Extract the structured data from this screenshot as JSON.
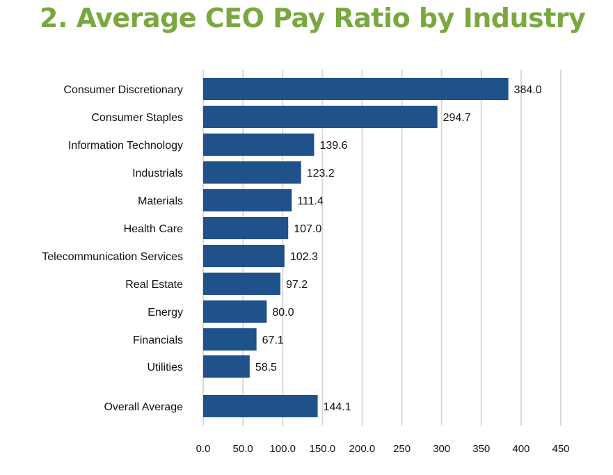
{
  "title": "2. Average CEO Pay Ratio by Industry",
  "colors": {
    "title": "#7aa840",
    "bar": "#1f528b",
    "grid": "#d9d9d9"
  },
  "chart_data": {
    "type": "bar",
    "orientation": "horizontal",
    "categories": [
      "Consumer Discretionary",
      "Consumer Staples",
      "Information Technology",
      "Industrials",
      "Materials",
      "Health Care",
      "Telecommunication Services",
      "Real Estate",
      "Energy",
      "Financials",
      "Utilities",
      "Overall Average"
    ],
    "values": [
      384.0,
      294.7,
      139.6,
      123.2,
      111.4,
      107.0,
      102.3,
      97.2,
      80.0,
      67.1,
      58.5,
      144.1
    ],
    "value_labels": [
      "384.0",
      "294.7",
      "139.6",
      "123.2",
      "111.4",
      "107.0",
      "102.3",
      "97.2",
      "80.0",
      "67.1",
      "58.5",
      "144.1"
    ],
    "xlim": [
      0,
      450
    ],
    "x_ticks": [
      0,
      50,
      100,
      150,
      200,
      250,
      300,
      350,
      400,
      450
    ],
    "x_tick_labels": [
      "0.0",
      "50.0",
      "100.0",
      "150.0",
      "200.0",
      "250",
      "300",
      "350",
      "400",
      "450"
    ],
    "grid": true,
    "legend": "none"
  }
}
